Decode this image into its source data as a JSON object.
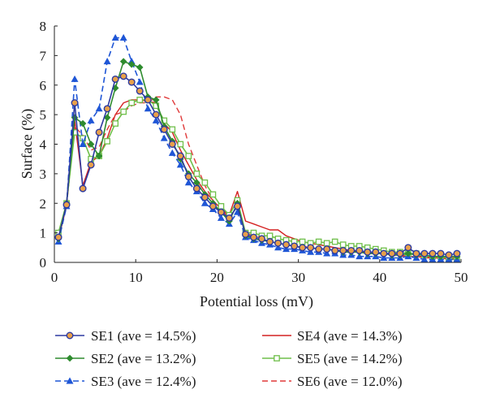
{
  "chart_data": {
    "type": "line",
    "xlabel": "Potential loss (mV)",
    "ylabel": "Surface (%)",
    "xlim": [
      0,
      50
    ],
    "ylim": [
      0,
      8
    ],
    "xticks": [
      0,
      10,
      20,
      30,
      40,
      50
    ],
    "yticks": [
      0,
      1,
      2,
      3,
      4,
      5,
      6,
      7,
      8
    ],
    "grid": false,
    "legend_position": "bottom",
    "series": [
      {
        "name": "SE1 (ave = 14.5%)",
        "color": "#2d3aa0",
        "marker": "circle",
        "marker_fill": "#e8a04a",
        "dash": "solid",
        "x": [
          0.5,
          1.5,
          2.5,
          3.5,
          4.5,
          5.5,
          6.5,
          7.5,
          8.5,
          9.5,
          10.5,
          11.5,
          12.5,
          13.5,
          14.5,
          15.5,
          16.5,
          17.5,
          18.5,
          19.5,
          20.5,
          21.5,
          22.5,
          23.5,
          24.5,
          25.5,
          26.5,
          27.5,
          28.5,
          29.5,
          30.5,
          31.5,
          32.5,
          33.5,
          34.5,
          35.5,
          36.5,
          37.5,
          38.5,
          39.5,
          40.5,
          41.5,
          42.5,
          43.5,
          44.5,
          45.5,
          46.5,
          47.5,
          48.5,
          49.5
        ],
        "y": [
          0.85,
          1.95,
          5.4,
          2.5,
          3.3,
          4.4,
          5.2,
          6.2,
          6.3,
          6.1,
          5.8,
          5.5,
          5.0,
          4.5,
          4.0,
          3.6,
          2.9,
          2.5,
          2.2,
          1.9,
          1.7,
          1.5,
          1.9,
          0.95,
          0.85,
          0.8,
          0.7,
          0.65,
          0.6,
          0.55,
          0.5,
          0.5,
          0.45,
          0.45,
          0.4,
          0.4,
          0.4,
          0.4,
          0.35,
          0.35,
          0.3,
          0.3,
          0.3,
          0.5,
          0.3,
          0.3,
          0.3,
          0.3,
          0.25,
          0.3
        ]
      },
      {
        "name": "SE2 (ave = 13.2%)",
        "color": "#2e8b2e",
        "marker": "diamond",
        "marker_fill": "#2e8b2e",
        "dash": "solid",
        "x": [
          0.5,
          1.5,
          2.5,
          3.5,
          4.5,
          5.5,
          6.5,
          7.5,
          8.5,
          9.5,
          10.5,
          11.5,
          12.5,
          13.5,
          14.5,
          15.5,
          16.5,
          17.5,
          18.5,
          19.5,
          20.5,
          21.5,
          22.5,
          23.5,
          24.5,
          25.5,
          26.5,
          27.5,
          28.5,
          29.5,
          30.5,
          31.5,
          32.5,
          33.5,
          34.5,
          35.5,
          36.5,
          37.5,
          38.5,
          39.5,
          40.5,
          41.5,
          42.5,
          43.5,
          44.5,
          45.5,
          46.5,
          47.5,
          48.5,
          49.5
        ],
        "y": [
          0.8,
          2.0,
          4.9,
          4.7,
          4.0,
          3.6,
          4.9,
          5.9,
          6.8,
          6.7,
          6.6,
          5.6,
          5.5,
          4.6,
          4.1,
          3.5,
          3.0,
          2.7,
          2.3,
          2.0,
          1.7,
          1.4,
          2.0,
          0.9,
          0.8,
          0.75,
          0.7,
          0.65,
          0.6,
          0.55,
          0.5,
          0.5,
          0.45,
          0.45,
          0.4,
          0.35,
          0.35,
          0.35,
          0.3,
          0.3,
          0.3,
          0.25,
          0.25,
          0.3,
          0.25,
          0.25,
          0.2,
          0.2,
          0.2,
          0.2
        ]
      },
      {
        "name": "SE3 (ave = 12.4%)",
        "color": "#1f56d6",
        "marker": "triangle",
        "marker_fill": "#1f56d6",
        "dash": "dashed",
        "x": [
          0.5,
          1.5,
          2.5,
          3.5,
          4.5,
          5.5,
          6.5,
          7.5,
          8.5,
          9.5,
          10.5,
          11.5,
          12.5,
          13.5,
          14.5,
          15.5,
          16.5,
          17.5,
          18.5,
          19.5,
          20.5,
          21.5,
          22.5,
          23.5,
          24.5,
          25.5,
          26.5,
          27.5,
          28.5,
          29.5,
          30.5,
          31.5,
          32.5,
          33.5,
          34.5,
          35.5,
          36.5,
          37.5,
          38.5,
          39.5,
          40.5,
          41.5,
          42.5,
          43.5,
          44.5,
          45.5,
          46.5,
          47.5,
          48.5,
          49.5
        ],
        "y": [
          0.7,
          1.9,
          6.2,
          4.0,
          4.8,
          5.2,
          6.8,
          7.6,
          7.6,
          6.8,
          6.1,
          5.2,
          4.8,
          4.2,
          3.7,
          3.3,
          2.7,
          2.4,
          2.0,
          1.8,
          1.5,
          1.3,
          1.7,
          0.85,
          0.75,
          0.65,
          0.6,
          0.5,
          0.45,
          0.45,
          0.4,
          0.35,
          0.35,
          0.3,
          0.3,
          0.25,
          0.25,
          0.2,
          0.2,
          0.2,
          0.15,
          0.15,
          0.15,
          0.2,
          0.15,
          0.1,
          0.1,
          0.1,
          0.1,
          0.1
        ]
      },
      {
        "name": "SE4 (ave = 14.3%)",
        "color": "#d42020",
        "marker": "none",
        "marker_fill": "none",
        "dash": "solid",
        "x": [
          0.5,
          1.5,
          2.5,
          3.5,
          4.5,
          5.5,
          6.5,
          7.5,
          8.5,
          9.5,
          10.5,
          11.5,
          12.5,
          13.5,
          14.5,
          15.5,
          16.5,
          17.5,
          18.5,
          19.5,
          20.5,
          21.5,
          22.5,
          23.5,
          24.5,
          25.5,
          26.5,
          27.5,
          28.5,
          29.5,
          30.5,
          31.5,
          32.5,
          33.5,
          34.5,
          35.5,
          36.5,
          37.5,
          38.5,
          39.5,
          40.5,
          41.5,
          42.5,
          43.5,
          44.5,
          45.5,
          46.5,
          47.5,
          48.5,
          49.5
        ],
        "y": [
          0.8,
          1.95,
          4.8,
          2.6,
          3.4,
          3.6,
          4.2,
          5.0,
          5.4,
          5.5,
          5.5,
          5.45,
          5.4,
          4.7,
          4.4,
          3.8,
          3.3,
          2.8,
          2.4,
          2.1,
          1.8,
          1.6,
          2.4,
          1.4,
          1.3,
          1.2,
          1.1,
          1.1,
          0.9,
          0.8,
          0.7,
          0.65,
          0.6,
          0.55,
          0.5,
          0.45,
          0.4,
          0.35,
          0.35,
          0.3,
          0.3,
          0.25,
          0.25,
          0.2,
          0.2,
          0.2,
          0.15,
          0.15,
          0.15,
          0.15
        ]
      },
      {
        "name": "SE5 (ave = 14.2%)",
        "color": "#6fbf4a",
        "marker": "square",
        "marker_fill": "#ffffff",
        "dash": "solid",
        "x": [
          0.5,
          1.5,
          2.5,
          3.5,
          4.5,
          5.5,
          6.5,
          7.5,
          8.5,
          9.5,
          10.5,
          11.5,
          12.5,
          13.5,
          14.5,
          15.5,
          16.5,
          17.5,
          18.5,
          19.5,
          20.5,
          21.5,
          22.5,
          23.5,
          24.5,
          25.5,
          26.5,
          27.5,
          28.5,
          29.5,
          30.5,
          31.5,
          32.5,
          33.5,
          34.5,
          35.5,
          36.5,
          37.5,
          38.5,
          39.5,
          40.5,
          41.5,
          42.5,
          43.5,
          44.5,
          45.5,
          46.5,
          47.5,
          48.5,
          49.5
        ],
        "y": [
          1.0,
          2.0,
          4.4,
          4.2,
          3.5,
          3.6,
          4.1,
          4.7,
          5.1,
          5.4,
          5.5,
          5.5,
          5.3,
          4.8,
          4.5,
          4.0,
          3.6,
          3.0,
          2.7,
          2.3,
          1.9,
          1.6,
          2.1,
          1.0,
          1.0,
          0.9,
          0.9,
          0.8,
          0.75,
          0.7,
          0.7,
          0.65,
          0.7,
          0.65,
          0.7,
          0.6,
          0.55,
          0.55,
          0.5,
          0.45,
          0.4,
          0.35,
          0.35,
          0.3,
          0.3,
          0.25,
          0.2,
          0.2,
          0.15,
          0.1
        ]
      },
      {
        "name": "SE6 (ave = 12.0%)",
        "color": "#e03a3a",
        "marker": "none",
        "marker_fill": "none",
        "dash": "dashed",
        "x": [
          0.5,
          1.5,
          2.5,
          3.5,
          4.5,
          5.5,
          6.5,
          7.5,
          8.5,
          9.5,
          10.5,
          11.5,
          12.5,
          13.5,
          14.5,
          15.5,
          16.5,
          17.5,
          18.5,
          19.5,
          20.5,
          21.5,
          22.5,
          23.5,
          24.5,
          25.5,
          26.5,
          27.5,
          28.5,
          29.5,
          30.5,
          31.5,
          32.5,
          33.5,
          34.5,
          35.5,
          36.5,
          37.5,
          38.5,
          39.5,
          40.5,
          41.5,
          42.5,
          43.5,
          44.5,
          45.5,
          46.5,
          47.5,
          48.5,
          49.5
        ],
        "y": [
          0.8,
          1.9,
          4.6,
          4.3,
          3.8,
          3.9,
          4.5,
          5.0,
          5.1,
          5.3,
          5.4,
          5.4,
          5.6,
          5.6,
          5.5,
          5.0,
          4.0,
          3.3,
          2.6,
          2.1,
          1.8,
          1.5,
          1.9,
          1.0,
          0.9,
          0.85,
          0.8,
          0.7,
          0.65,
          0.6,
          0.55,
          0.5,
          0.45,
          0.45,
          0.4,
          0.4,
          0.35,
          0.35,
          0.3,
          0.3,
          0.25,
          0.25,
          0.2,
          0.2,
          0.2,
          0.15,
          0.15,
          0.15,
          0.1,
          0.1
        ]
      }
    ]
  }
}
